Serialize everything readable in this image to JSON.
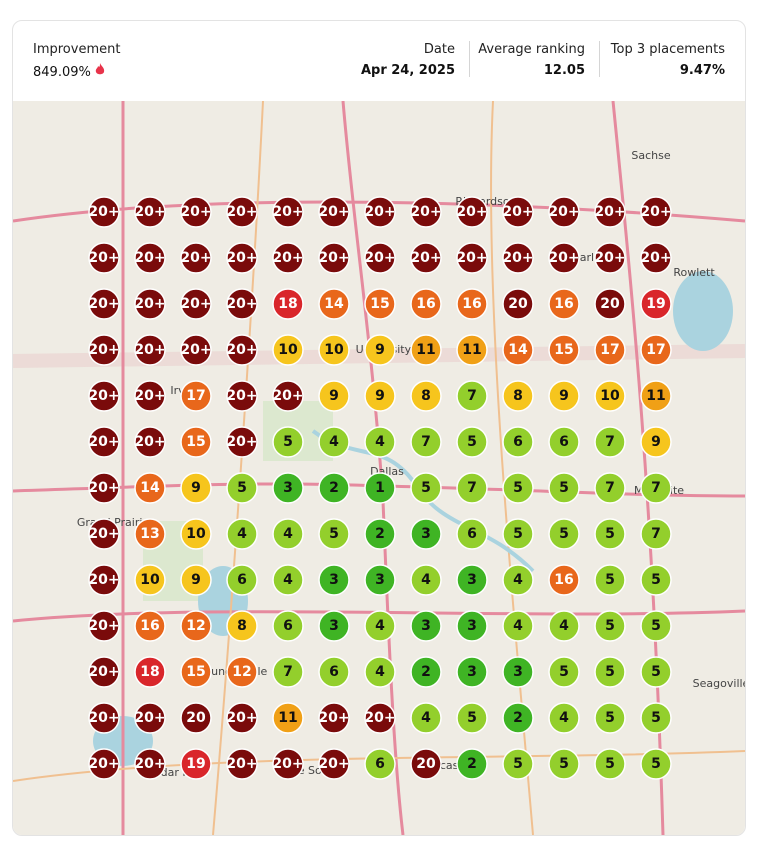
{
  "header": {
    "improvement": {
      "label": "Improvement",
      "value": "849.09%"
    },
    "date": {
      "label": "Date",
      "value": "Apr 24, 2025"
    },
    "average_ranking": {
      "label": "Average ranking",
      "value": "12.05"
    },
    "top3": {
      "label": "Top 3 placements",
      "value": "9.47%"
    }
  },
  "map": {
    "places": [
      "Richardson",
      "Garland",
      "Rowlett",
      "Sachse",
      "University Park",
      "Irving",
      "Dallas",
      "Mesquite",
      "Grand Prairie",
      "Duncanville",
      "Cedar Hill",
      "De Soto",
      "Lancaster",
      "Seagoville"
    ],
    "grid": [
      [
        "20+",
        "20+",
        "20+",
        "20+",
        "20+",
        "20+",
        "20+",
        "20+",
        "20+",
        "20+",
        "20+",
        "20+",
        "20+"
      ],
      [
        "20+",
        "20+",
        "20+",
        "20+",
        "20+",
        "20+",
        "20+",
        "20+",
        "20+",
        "20+",
        "20+",
        "20+",
        "20+"
      ],
      [
        "20+",
        "20+",
        "20+",
        "20+",
        18,
        14,
        15,
        16,
        16,
        20,
        16,
        20,
        19
      ],
      [
        "20+",
        "20+",
        "20+",
        "20+",
        10,
        10,
        9,
        11,
        11,
        14,
        15,
        17,
        17
      ],
      [
        "20+",
        "20+",
        17,
        "20+",
        "20+",
        9,
        9,
        8,
        7,
        8,
        9,
        10,
        11
      ],
      [
        "20+",
        "20+",
        15,
        "20+",
        5,
        4,
        4,
        7,
        5,
        6,
        6,
        7,
        9
      ],
      [
        "20+",
        14,
        9,
        5,
        3,
        2,
        1,
        5,
        7,
        5,
        5,
        7,
        7
      ],
      [
        "20+",
        13,
        10,
        4,
        4,
        5,
        2,
        3,
        6,
        5,
        5,
        5,
        7
      ],
      [
        "20+",
        10,
        9,
        6,
        4,
        3,
        3,
        4,
        3,
        4,
        16,
        5,
        5
      ],
      [
        "20+",
        16,
        12,
        8,
        6,
        3,
        4,
        3,
        3,
        4,
        4,
        5,
        5
      ],
      [
        "20+",
        18,
        15,
        12,
        7,
        6,
        4,
        2,
        3,
        3,
        5,
        5,
        5
      ],
      [
        "20+",
        "20+",
        20,
        "20+",
        11,
        "20+",
        "20+",
        4,
        5,
        2,
        4,
        5,
        5
      ],
      [
        "20+",
        "20+",
        19,
        "20+",
        "20+",
        "20+",
        6,
        20,
        2,
        5,
        5,
        5,
        5
      ]
    ]
  }
}
